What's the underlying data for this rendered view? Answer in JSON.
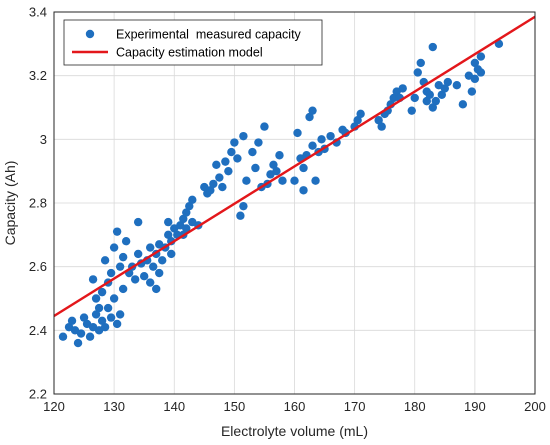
{
  "chart_data": {
    "type": "scatter",
    "xlabel": "Electrolyte volume (mL)",
    "ylabel": "Capacity (Ah)",
    "xlim": [
      120,
      200
    ],
    "ylim": [
      2.2,
      3.4
    ],
    "xticks": [
      120,
      130,
      140,
      150,
      160,
      170,
      180,
      190,
      200
    ],
    "yticks": [
      2.2,
      2.4,
      2.6,
      2.8,
      3.0,
      3.2,
      3.4
    ],
    "xtick_labels": [
      "120",
      "130",
      "140",
      "150",
      "160",
      "170",
      "180",
      "190",
      "200"
    ],
    "ytick_labels": [
      "2.2",
      "2.4",
      "2.6",
      "2.8",
      "3",
      "3.2",
      "3.4"
    ],
    "grid": true,
    "legend_position": "top-left",
    "series": [
      {
        "name": "Experimental  measured capacity",
        "kind": "scatter",
        "color": "#1f6fbf",
        "points": [
          [
            121.5,
            2.38
          ],
          [
            122.5,
            2.41
          ],
          [
            123.0,
            2.43
          ],
          [
            123.5,
            2.4
          ],
          [
            124.0,
            2.36
          ],
          [
            124.5,
            2.39
          ],
          [
            125.0,
            2.44
          ],
          [
            125.5,
            2.42
          ],
          [
            126.0,
            2.38
          ],
          [
            126.5,
            2.41
          ],
          [
            126.5,
            2.56
          ],
          [
            127.0,
            2.45
          ],
          [
            127.0,
            2.5
          ],
          [
            127.5,
            2.4
          ],
          [
            127.5,
            2.47
          ],
          [
            128.0,
            2.43
          ],
          [
            128.0,
            2.52
          ],
          [
            128.5,
            2.41
          ],
          [
            128.5,
            2.62
          ],
          [
            129.0,
            2.47
          ],
          [
            129.0,
            2.55
          ],
          [
            129.5,
            2.44
          ],
          [
            129.5,
            2.58
          ],
          [
            130.0,
            2.5
          ],
          [
            130.0,
            2.66
          ],
          [
            130.5,
            2.71
          ],
          [
            130.5,
            2.42
          ],
          [
            131.0,
            2.45
          ],
          [
            131.0,
            2.6
          ],
          [
            131.5,
            2.63
          ],
          [
            131.5,
            2.53
          ],
          [
            132.0,
            2.68
          ],
          [
            132.5,
            2.58
          ],
          [
            133.0,
            2.6
          ],
          [
            133.5,
            2.56
          ],
          [
            134.0,
            2.64
          ],
          [
            134.0,
            2.74
          ],
          [
            134.5,
            2.61
          ],
          [
            135.0,
            2.57
          ],
          [
            135.5,
            2.62
          ],
          [
            136.0,
            2.66
          ],
          [
            136.0,
            2.55
          ],
          [
            136.5,
            2.6
          ],
          [
            137.0,
            2.53
          ],
          [
            137.0,
            2.64
          ],
          [
            137.5,
            2.58
          ],
          [
            137.5,
            2.67
          ],
          [
            138.0,
            2.62
          ],
          [
            138.5,
            2.66
          ],
          [
            139.0,
            2.74
          ],
          [
            139.0,
            2.7
          ],
          [
            139.5,
            2.64
          ],
          [
            139.5,
            2.68
          ],
          [
            140.0,
            2.72
          ],
          [
            140.5,
            2.7
          ],
          [
            141.0,
            2.73
          ],
          [
            141.5,
            2.75
          ],
          [
            141.5,
            2.7
          ],
          [
            142.0,
            2.77
          ],
          [
            142.0,
            2.72
          ],
          [
            142.5,
            2.79
          ],
          [
            143.0,
            2.81
          ],
          [
            143.0,
            2.74
          ],
          [
            144.0,
            2.73
          ],
          [
            145.0,
            2.85
          ],
          [
            145.5,
            2.83
          ],
          [
            146.0,
            2.84
          ],
          [
            146.5,
            2.86
          ],
          [
            147.0,
            2.92
          ],
          [
            147.5,
            2.88
          ],
          [
            148.0,
            2.85
          ],
          [
            148.5,
            2.93
          ],
          [
            149.0,
            2.9
          ],
          [
            149.5,
            2.96
          ],
          [
            150.0,
            2.99
          ],
          [
            150.5,
            2.94
          ],
          [
            151.0,
            2.76
          ],
          [
            151.5,
            2.79
          ],
          [
            151.5,
            3.01
          ],
          [
            152.0,
            2.87
          ],
          [
            153.0,
            2.96
          ],
          [
            153.5,
            2.91
          ],
          [
            154.0,
            2.99
          ],
          [
            154.5,
            2.85
          ],
          [
            155.0,
            3.04
          ],
          [
            155.5,
            2.86
          ],
          [
            156.0,
            2.89
          ],
          [
            156.5,
            2.92
          ],
          [
            157.0,
            2.9
          ],
          [
            157.5,
            2.95
          ],
          [
            158.0,
            2.87
          ],
          [
            160.0,
            2.87
          ],
          [
            160.5,
            3.02
          ],
          [
            161.0,
            2.94
          ],
          [
            161.5,
            2.91
          ],
          [
            161.5,
            2.84
          ],
          [
            162.0,
            2.95
          ],
          [
            162.5,
            3.07
          ],
          [
            163.0,
            3.09
          ],
          [
            163.0,
            2.98
          ],
          [
            163.5,
            2.87
          ],
          [
            164.0,
            2.96
          ],
          [
            164.5,
            3.0
          ],
          [
            165.0,
            2.97
          ],
          [
            166.0,
            3.01
          ],
          [
            167.0,
            2.99
          ],
          [
            168.0,
            3.03
          ],
          [
            168.5,
            3.02
          ],
          [
            170.0,
            3.04
          ],
          [
            170.5,
            3.06
          ],
          [
            171.0,
            3.08
          ],
          [
            174.0,
            3.06
          ],
          [
            174.5,
            3.04
          ],
          [
            175.0,
            3.08
          ],
          [
            175.5,
            3.09
          ],
          [
            176.0,
            3.11
          ],
          [
            176.5,
            3.13
          ],
          [
            177.0,
            3.15
          ],
          [
            177.5,
            3.13
          ],
          [
            178.0,
            3.16
          ],
          [
            179.5,
            3.09
          ],
          [
            180.0,
            3.13
          ],
          [
            180.5,
            3.21
          ],
          [
            181.0,
            3.24
          ],
          [
            181.5,
            3.18
          ],
          [
            182.0,
            3.15
          ],
          [
            182.0,
            3.12
          ],
          [
            182.5,
            3.14
          ],
          [
            183.0,
            3.29
          ],
          [
            183.0,
            3.1
          ],
          [
            183.5,
            3.12
          ],
          [
            184.0,
            3.17
          ],
          [
            184.5,
            3.14
          ],
          [
            185.0,
            3.16
          ],
          [
            185.5,
            3.18
          ],
          [
            187.0,
            3.17
          ],
          [
            188.0,
            3.11
          ],
          [
            189.0,
            3.2
          ],
          [
            189.5,
            3.15
          ],
          [
            190.0,
            3.24
          ],
          [
            190.0,
            3.19
          ],
          [
            190.5,
            3.22
          ],
          [
            191.0,
            3.26
          ],
          [
            191.0,
            3.21
          ],
          [
            194.0,
            3.3
          ]
        ]
      },
      {
        "name": "Capacity estimation model",
        "kind": "line",
        "color": "#e3171b",
        "points": [
          [
            120,
            2.445
          ],
          [
            200,
            3.385
          ]
        ]
      }
    ]
  }
}
